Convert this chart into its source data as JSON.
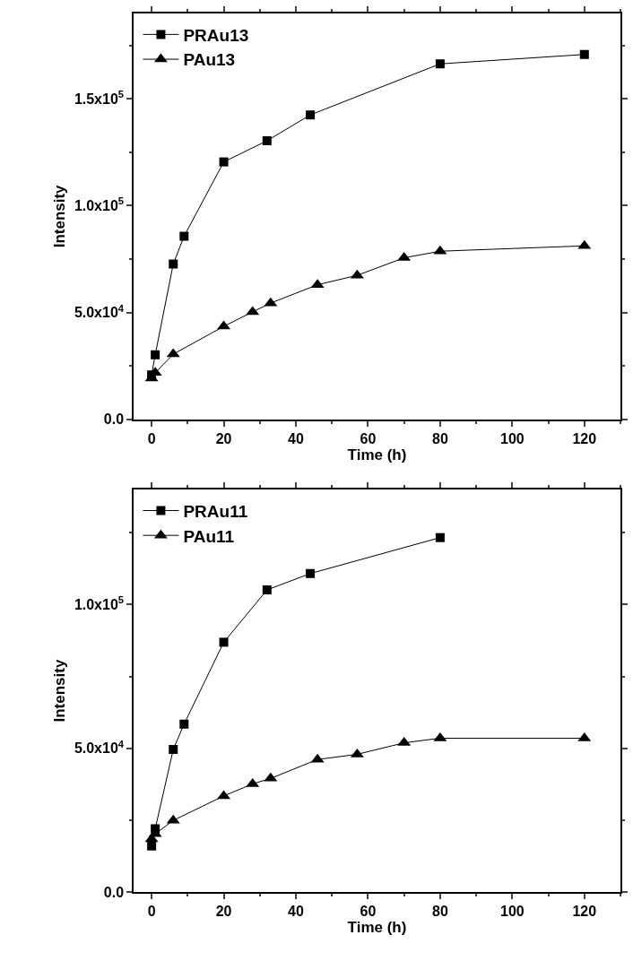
{
  "chart_data": [
    {
      "type": "line",
      "xlabel": "Time (h)",
      "ylabel": "Intensity",
      "xlim": [
        -5,
        130
      ],
      "xticks": [
        0,
        20,
        40,
        60,
        80,
        100,
        120
      ],
      "ylim": [
        0,
        190000
      ],
      "yticks": [
        {
          "value": 0,
          "label": "0.0"
        },
        {
          "value": 50000,
          "label": "5.0x10$^{4}$"
        },
        {
          "value": 100000,
          "label": "1.0x10$^{5}$"
        },
        {
          "value": 150000,
          "label": "1.5x10$^{5}$"
        }
      ],
      "legend": "top left",
      "line_style": "solid",
      "series": [
        {
          "name": "PRAu13",
          "color": "#000000",
          "marker": "square",
          "x": [
            0,
            1,
            6,
            9,
            20,
            32,
            44,
            80,
            120
          ],
          "values": [
            20800,
            30200,
            72700,
            85700,
            120500,
            130400,
            142500,
            166400,
            170800
          ]
        },
        {
          "name": "PAu13",
          "color": "#000000",
          "marker": "triangle",
          "x": [
            0,
            1,
            6,
            20,
            28,
            33,
            46,
            57,
            70,
            80,
            120
          ],
          "values": [
            19200,
            21800,
            30500,
            43500,
            50300,
            54400,
            63000,
            67400,
            75600,
            78700,
            81200
          ]
        }
      ]
    },
    {
      "type": "line",
      "xlabel": "Time (h)",
      "ylabel": "Intensity",
      "xlim": [
        -5,
        130
      ],
      "xticks": [
        0,
        20,
        40,
        60,
        80,
        100,
        120
      ],
      "ylim": [
        0,
        140000
      ],
      "yticks": [
        {
          "value": 0,
          "label": "0.0"
        },
        {
          "value": 50000,
          "label": "5.0x10$^{4}$"
        },
        {
          "value": 100000,
          "label": "1.0x10$^{5}$"
        }
      ],
      "legend": "top left",
      "line_style": "solid",
      "series": [
        {
          "name": "PRAu11",
          "color": "#000000",
          "marker": "square",
          "x": [
            0,
            1,
            6,
            9,
            20,
            32,
            44,
            80
          ],
          "values": [
            16000,
            22000,
            49600,
            58400,
            86900,
            105100,
            110800,
            123300
          ]
        },
        {
          "name": "PAu11",
          "color": "#000000",
          "marker": "triangle",
          "x": [
            0,
            1,
            6,
            20,
            28,
            33,
            46,
            57,
            70,
            80,
            120
          ],
          "values": [
            18400,
            20200,
            24900,
            33400,
            37600,
            39500,
            46100,
            47900,
            51900,
            53500,
            53500
          ]
        }
      ]
    }
  ]
}
